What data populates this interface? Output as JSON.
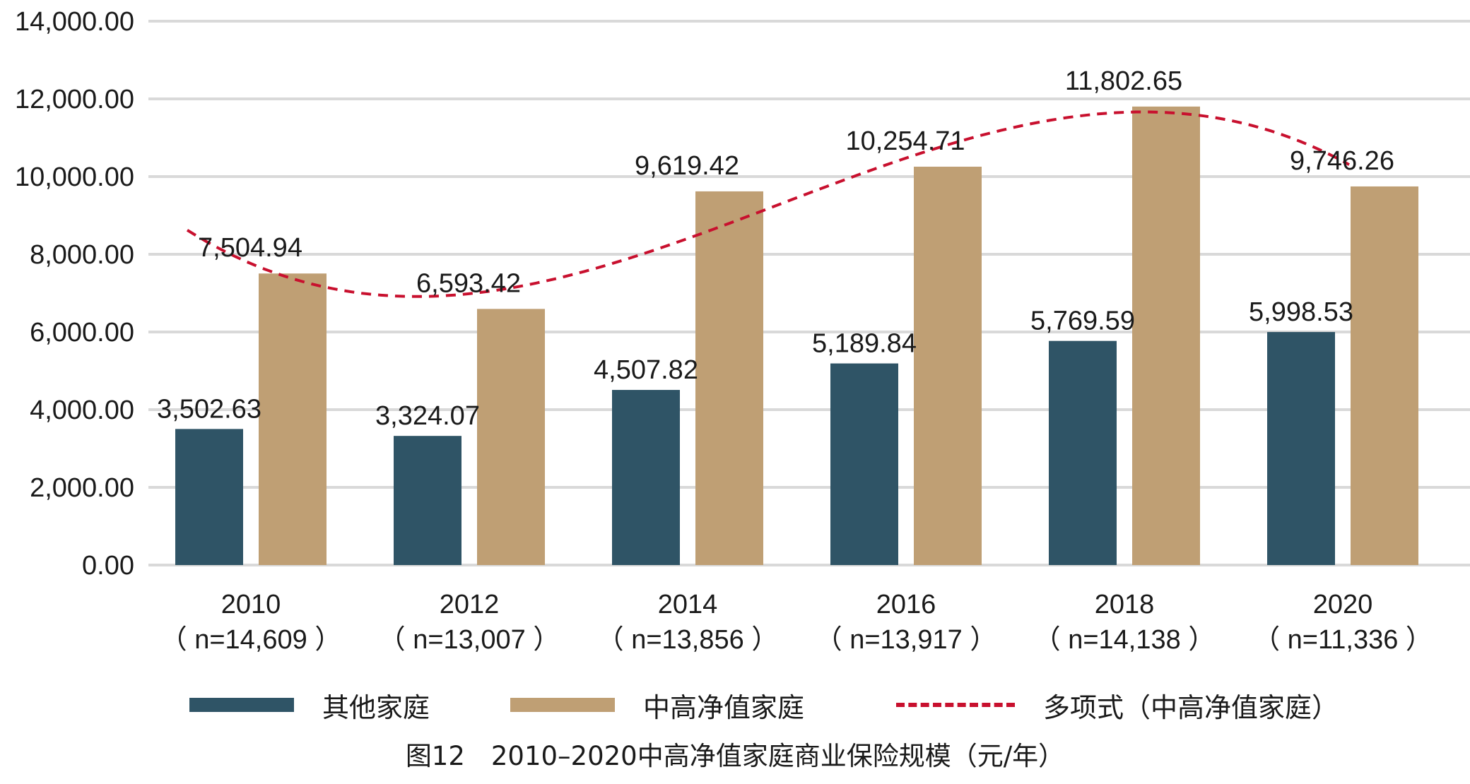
{
  "chart_data": {
    "type": "bar",
    "title": "",
    "xlabel": "",
    "ylabel": "",
    "ylim": [
      0,
      14000
    ],
    "yticks": [
      "0.00",
      "2,000.00",
      "4,000.00",
      "6,000.00",
      "8,000.00",
      "10,000.00",
      "12,000.00",
      "14,000.00"
    ],
    "categories": [
      {
        "year": "2010",
        "n": "（ n=14,609 ）"
      },
      {
        "year": "2012",
        "n": "（ n=13,007 ）"
      },
      {
        "year": "2014",
        "n": "（ n=13,856 ）"
      },
      {
        "year": "2016",
        "n": "（ n=13,917 ）"
      },
      {
        "year": "2018",
        "n": "（ n=14,138 ）"
      },
      {
        "year": "2020",
        "n": "（ n=11,336 ）"
      }
    ],
    "series": [
      {
        "name": "其他家庭",
        "color": "#2f5466",
        "values": [
          3502.63,
          3324.07,
          4507.82,
          5189.84,
          5769.59,
          5998.53
        ],
        "labels": [
          "3,502.63",
          "3,324.07",
          "4,507.82",
          "5,189.84",
          "5,769.59",
          "5,998.53"
        ]
      },
      {
        "name": "中高净值家庭",
        "color": "#bf9f74",
        "values": [
          7504.94,
          6593.42,
          9619.42,
          10254.71,
          11802.65,
          9746.26
        ],
        "labels": [
          "7,504.94",
          "6,593.42",
          "9,619.42",
          "10,254.71",
          "11,802.65",
          "9,746.26"
        ]
      }
    ],
    "trendline": {
      "name": "多项式（中高净值家庭）",
      "color": "#c8102e",
      "style": "dashed",
      "of_series": "中高净值家庭"
    },
    "grid": "horizontal",
    "legend_position": "bottom"
  },
  "legend": {
    "item1": "其他家庭",
    "item2": "中高净值家庭",
    "item3": "多项式（中高净值家庭）"
  },
  "caption": "图12　2010–2020中高净值家庭商业保险规模（元/年）"
}
